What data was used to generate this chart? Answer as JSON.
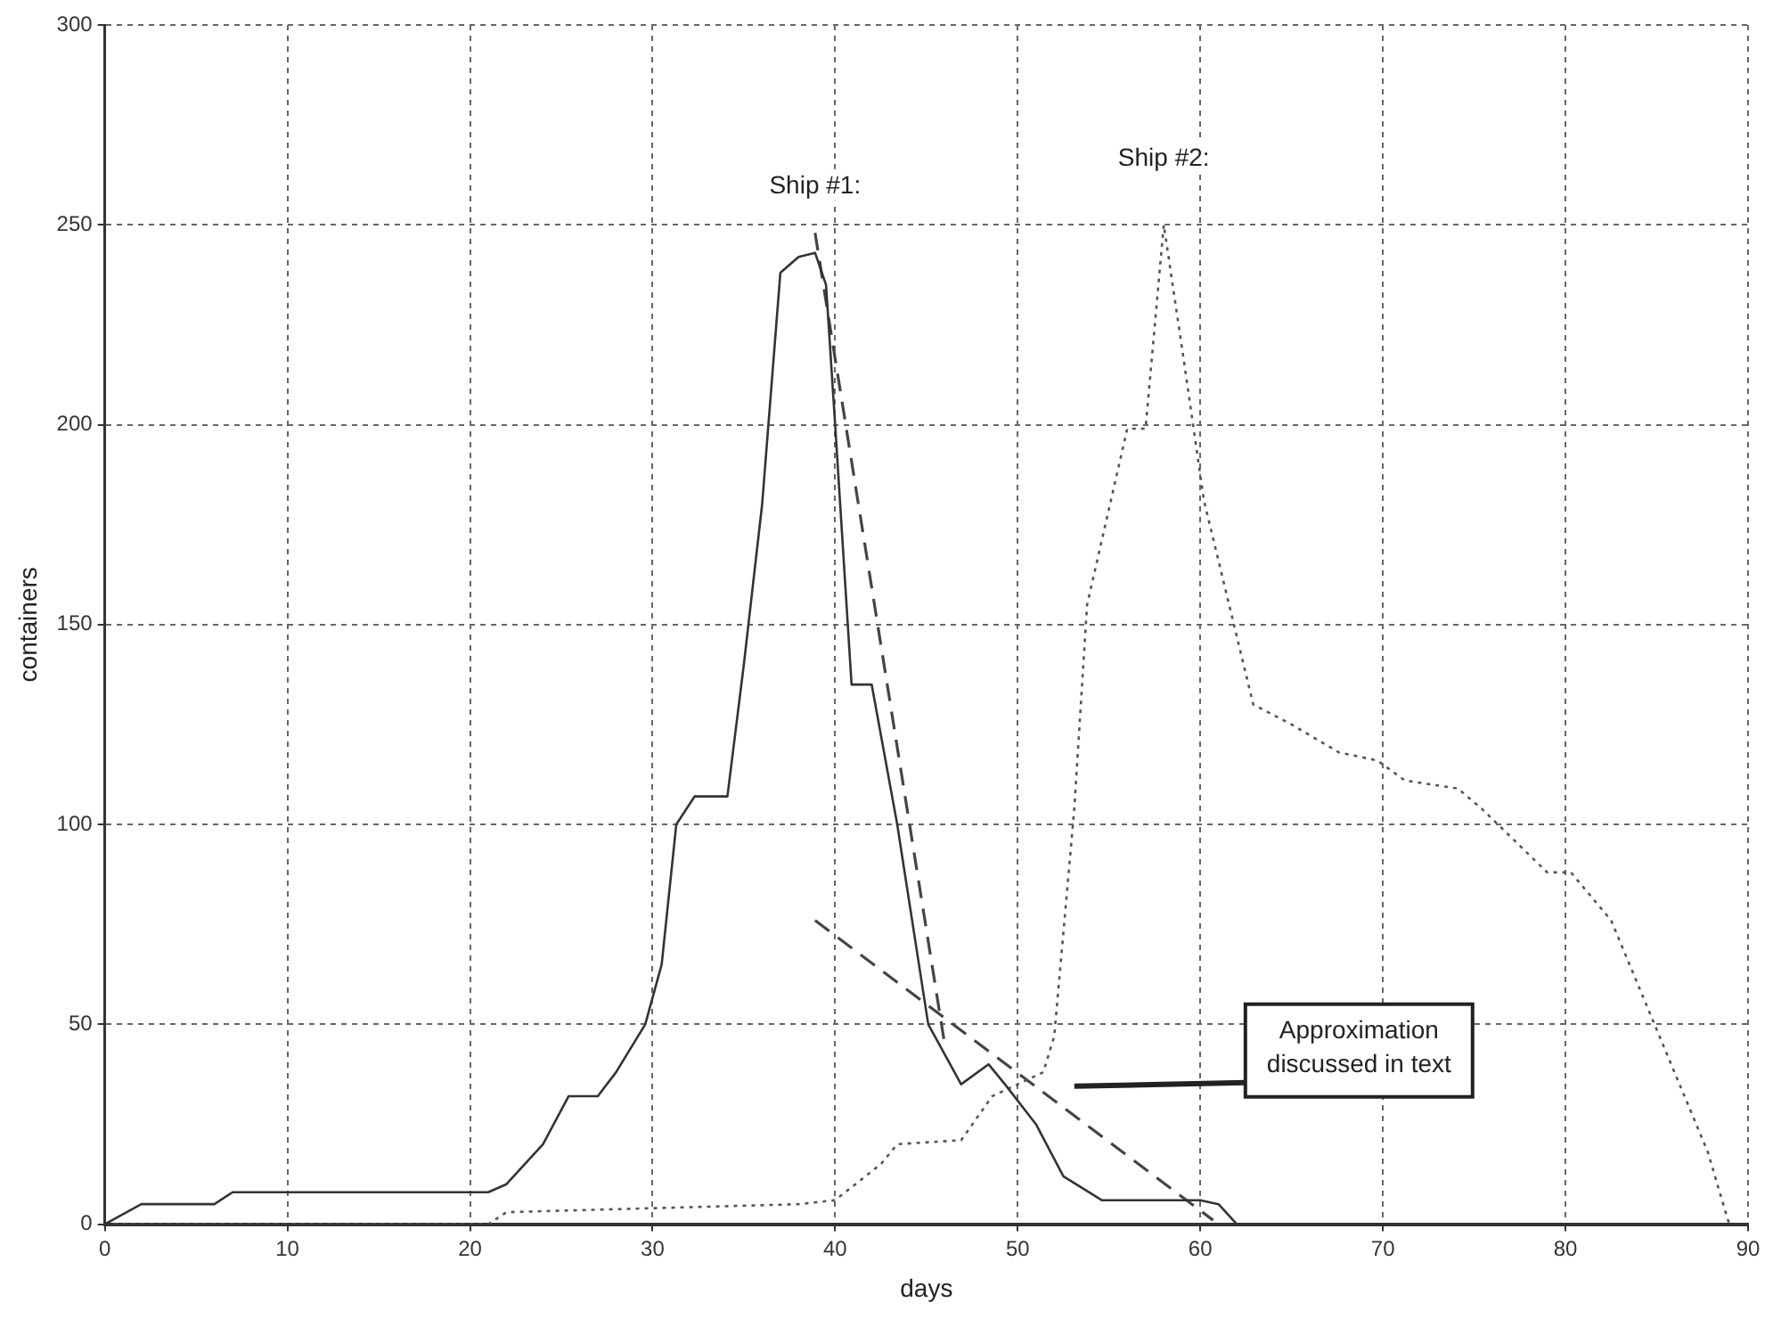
{
  "chart_data": {
    "type": "line",
    "xlabel": "days",
    "ylabel": "containers",
    "xlim": [
      0,
      90
    ],
    "xticks": [
      0,
      10,
      20,
      30,
      40,
      50,
      60,
      70,
      80,
      90
    ],
    "ylim": [
      0,
      300
    ],
    "yticks": [
      0,
      50,
      100,
      150,
      200,
      250,
      300
    ],
    "grid": true,
    "legend": false,
    "marker": "none",
    "series": [
      {
        "name": "Ship #1:",
        "color": "#333333",
        "line_style": "solid",
        "x": [
          0,
          2,
          6,
          7,
          20,
          21,
          22,
          24,
          25.4,
          27,
          28,
          29.6,
          30.5,
          31.3,
          32.3,
          34.1,
          35,
          36,
          37,
          38,
          38.9,
          39.5,
          40,
          40.9,
          42,
          43.4,
          45.1,
          46.9,
          48.4,
          49.3,
          51,
          52.5,
          54.6,
          60,
          61,
          62
        ],
        "values": [
          0,
          5,
          5,
          8,
          8,
          8,
          10,
          20,
          32,
          32,
          38,
          50,
          65,
          100,
          107,
          107,
          140,
          180,
          238,
          242,
          243,
          235,
          200,
          135,
          135,
          100,
          50,
          35,
          40,
          35,
          25,
          12,
          6,
          6,
          5,
          0
        ]
      },
      {
        "name": "Ship #2:",
        "color": "#555555",
        "line_style": "dotted",
        "x": [
          0,
          21,
          22,
          38,
          40,
          42.5,
          43.4,
          46.9,
          48.6,
          51.4,
          52,
          53.1,
          53.8,
          56,
          57,
          58,
          59.1,
          60.2,
          62.9,
          65,
          67.6,
          69.7,
          71.2,
          74.1,
          75.4,
          79,
          80.3,
          82.5,
          87.8,
          88.9,
          89
        ],
        "values": [
          0,
          0,
          3,
          5,
          6,
          15,
          20,
          21,
          32,
          38,
          47,
          104,
          155,
          199,
          199,
          250,
          216,
          181,
          130,
          125,
          118,
          116,
          111,
          109,
          104,
          88,
          88,
          76,
          18,
          1,
          0
        ]
      },
      {
        "color": "#444444",
        "line_style": "dashed",
        "x": [
          38.9,
          46
        ],
        "values": [
          248,
          45
        ]
      },
      {
        "color": "#444444",
        "line_style": "dashed",
        "x": [
          38.9,
          60.7
        ],
        "values": [
          76,
          1
        ]
      }
    ],
    "annotations": [
      "Approximation discussed in text"
    ]
  }
}
